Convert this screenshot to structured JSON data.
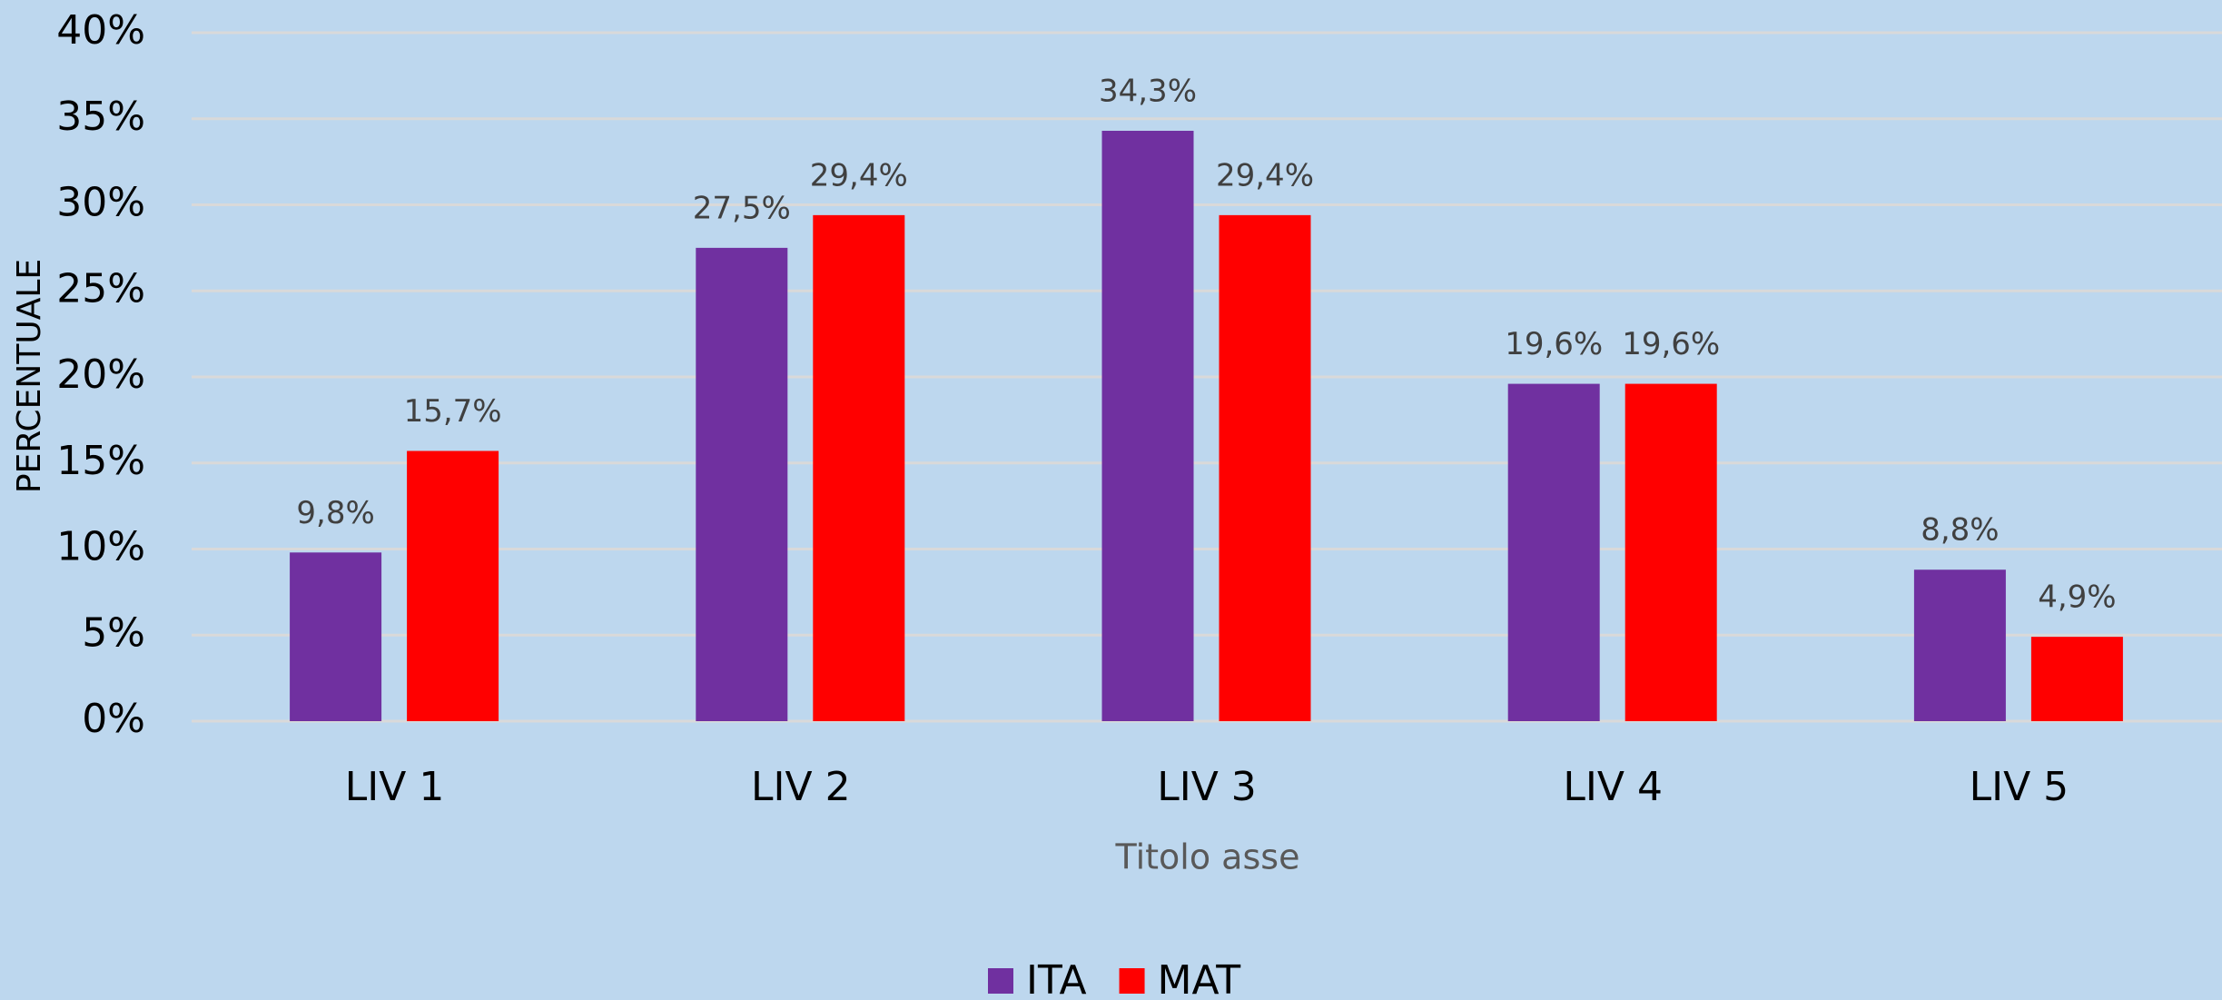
{
  "chart_data": {
    "type": "bar",
    "categories": [
      "LIV 1",
      "LIV 2",
      "LIV 3",
      "LIV 4",
      "LIV 5"
    ],
    "series": [
      {
        "name": "ITA",
        "color": "#7030a0",
        "values": [
          9.8,
          27.5,
          34.3,
          19.6,
          8.8
        ],
        "value_labels": [
          "9,8%",
          "27,5%",
          "34,3%",
          "19,6%",
          "8,8%"
        ]
      },
      {
        "name": "MAT",
        "color": "#ff0000",
        "values": [
          15.7,
          29.4,
          29.4,
          19.6,
          4.9
        ],
        "value_labels": [
          "15,7%",
          "29,4%",
          "29,4%",
          "19,6%",
          "4,9%"
        ]
      }
    ],
    "ylim": [
      0,
      40
    ],
    "yticks": [
      {
        "value": 0,
        "label": "0%"
      },
      {
        "value": 5,
        "label": "5%"
      },
      {
        "value": 10,
        "label": "10%"
      },
      {
        "value": 15,
        "label": "15%"
      },
      {
        "value": 20,
        "label": "20%"
      },
      {
        "value": 25,
        "label": "25%"
      },
      {
        "value": 30,
        "label": "30%"
      },
      {
        "value": 35,
        "label": "35%"
      },
      {
        "value": 40,
        "label": "40%"
      }
    ],
    "y_label": "PERCENTUALE",
    "x_label": "Titolo asse",
    "grid": true,
    "legend": "bottom"
  }
}
